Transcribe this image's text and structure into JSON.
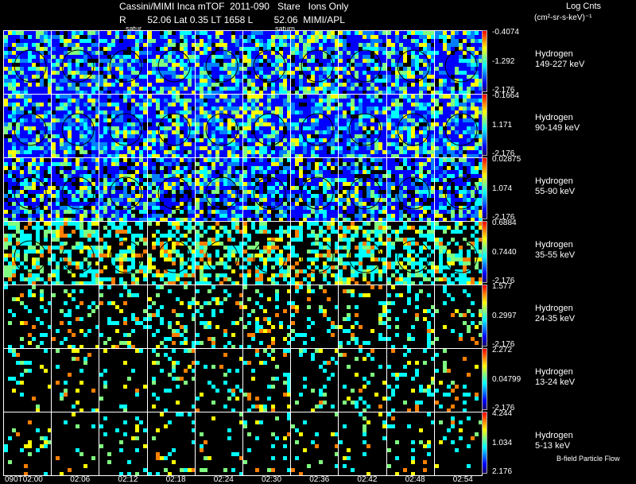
{
  "header": {
    "title": "Cassini/MIMI Inca mTOF  2011-090   Stare   Ions Only",
    "subtitle": "R        52.06 Lat 0.35 LT 1658 L        52.06  MIMI/APL",
    "saturn_label_1": "satur",
    "saturn_label_2": "saturn",
    "units_title": "Log Cnts",
    "units": "(cm²-sr-s-keV)⁻¹"
  },
  "chart_data": {
    "type": "heatmap",
    "title": "Cassini/MIMI Inca mTOF  2011-090   Stare   Ions Only",
    "x_tick_labels": [
      "090T02:00",
      "02:06",
      "02:12",
      "02:18",
      "02:24",
      "02:30",
      "02:36",
      "02:42",
      "02:48",
      "02:54"
    ],
    "rows": [
      {
        "species": "Hydrogen",
        "energy": "149-227 keV",
        "cb_max": "-0.4074",
        "cb_mid": "-1.292",
        "cb_min": "-2.176",
        "density": 0.92
      },
      {
        "species": "Hydrogen",
        "energy": "90-149 keV",
        "cb_max": "-0.1664",
        "cb_mid": "1.171",
        "cb_min": "-2.176",
        "density": 0.95
      },
      {
        "species": "Hydrogen",
        "energy": "55-90 keV",
        "cb_max": "0.02875",
        "cb_mid": "1.074",
        "cb_min": "-2.176",
        "density": 0.8
      },
      {
        "species": "Hydrogen",
        "energy": "35-55 keV",
        "cb_max": "0.6884",
        "cb_mid": "0.7440",
        "cb_min": "-2.176",
        "density": 0.55
      },
      {
        "species": "Hydrogen",
        "energy": "24-35 keV",
        "cb_max": "1.577",
        "cb_mid": "0.2997",
        "cb_min": "-2.176",
        "density": 0.2
      },
      {
        "species": "Hydrogen",
        "energy": "13-24 keV",
        "cb_max": "2.272",
        "cb_mid": "0.04799",
        "cb_min": "-2.176",
        "density": 0.16
      },
      {
        "species": "Hydrogen",
        "energy": "5-13 keV",
        "cb_max": "4.244",
        "cb_mid": "1.034",
        "cb_min": "2.176",
        "density": 0.12
      }
    ],
    "colorscale": [
      "#1a006a",
      "#0000ff",
      "#007fff",
      "#00ffff",
      "#7fff7f",
      "#ffff00",
      "#ff7f00",
      "#ff0000"
    ]
  },
  "footer": {
    "bfield_label": "B-field Particle Flow"
  }
}
